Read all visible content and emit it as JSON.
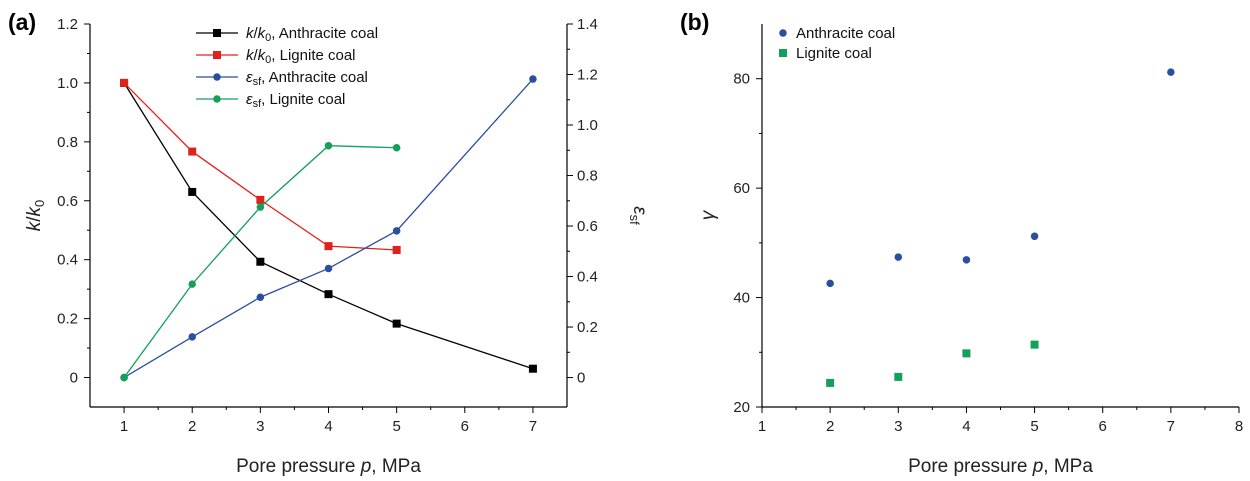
{
  "chart_data": [
    {
      "panel": "(a)",
      "type": "line",
      "x_ticks": [
        "1",
        "2",
        "3",
        "4",
        "5",
        "6",
        "7"
      ],
      "xlim": [
        0.5,
        7.5
      ],
      "xlabel": {
        "pre": "Pore pressure ",
        "var": "p",
        "post": ", MPa"
      },
      "ylabel_left": {
        "a": "k",
        "mid": "/",
        "b": "k",
        "sub": "0"
      },
      "ylabel_right": {
        "sym": "ε",
        "sub": "sf"
      },
      "ylim_left": [
        -0.1,
        1.2
      ],
      "yticks_left": [
        "0",
        "0.2",
        "0.4",
        "0.6",
        "0.8",
        "1.0",
        "1.2"
      ],
      "ylim_right": [
        -0.11666,
        1.4
      ],
      "yticks_right": [
        "0",
        "0.2",
        "0.4",
        "0.6",
        "0.8",
        "1.0",
        "1.2",
        "1.4"
      ],
      "legend_position": "top-center",
      "series": [
        {
          "name": "k/k0, Anthracite coal",
          "legend": {
            "a": "k",
            "mid": "/",
            "b": "k",
            "sub": "0",
            "rest": ", Anthracite coal"
          },
          "axis": "left",
          "marker": "square",
          "color": "#000000",
          "x": [
            1,
            2,
            3,
            4,
            5,
            7
          ],
          "y": [
            1.0,
            0.63,
            0.393,
            0.283,
            0.183,
            0.03
          ]
        },
        {
          "name": "k/k0, Lignite coal",
          "legend": {
            "a": "k",
            "mid": "/",
            "b": "k",
            "sub": "0",
            "rest": ", Lignite coal"
          },
          "axis": "left",
          "marker": "square",
          "color": "#e0211d",
          "x": [
            1,
            2,
            3,
            4,
            5
          ],
          "y": [
            1.0,
            0.767,
            0.603,
            0.446,
            0.433
          ]
        },
        {
          "name": "εsf, Anthracite coal",
          "legend": {
            "sym": "ε",
            "sub": "sf",
            "rest": ", Anthracite coal"
          },
          "axis": "right",
          "marker": "circle",
          "color": "#2b4ea0",
          "x": [
            1,
            2,
            3,
            4,
            5,
            7
          ],
          "y": [
            0.0,
            0.161,
            0.318,
            0.432,
            0.581,
            1.182
          ]
        },
        {
          "name": "εsf, Lignite coal",
          "legend": {
            "sym": "ε",
            "sub": "sf",
            "rest": ", Lignite coal"
          },
          "axis": "right",
          "marker": "circle",
          "color": "#14a05a",
          "x": [
            1,
            2,
            3,
            4,
            5
          ],
          "y": [
            0.0,
            0.37,
            0.675,
            0.918,
            0.91
          ]
        }
      ]
    },
    {
      "panel": "(b)",
      "type": "scatter",
      "x_ticks": [
        "1",
        "2",
        "3",
        "4",
        "5",
        "6",
        "7",
        "8"
      ],
      "xlim": [
        1,
        8
      ],
      "xlabel": {
        "pre": "Pore pressure ",
        "var": "p",
        "post": ", MPa"
      },
      "ylabel": "γ",
      "ylim": [
        20,
        90
      ],
      "yticks": [
        "20",
        "40",
        "60",
        "80"
      ],
      "legend_position": "top-left",
      "series": [
        {
          "name": "Anthracite coal",
          "marker": "circle",
          "color": "#2b4ea0",
          "x": [
            2,
            3,
            4,
            5,
            7
          ],
          "y": [
            42.6,
            47.4,
            46.9,
            51.2,
            81.2
          ]
        },
        {
          "name": "Lignite coal",
          "marker": "square",
          "color": "#14a05a",
          "x": [
            2,
            3,
            4,
            5
          ],
          "y": [
            24.4,
            25.5,
            29.8,
            31.4
          ]
        }
      ]
    }
  ]
}
